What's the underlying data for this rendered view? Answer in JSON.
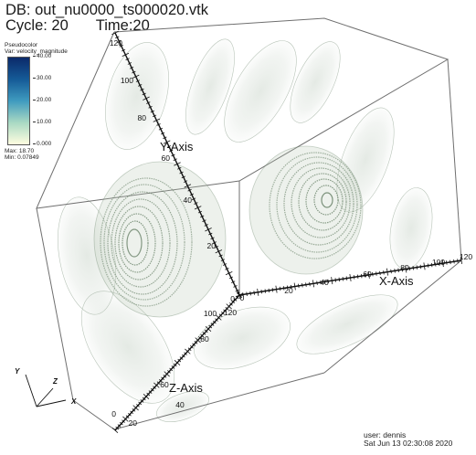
{
  "header": {
    "db_label": "DB: out_nu0000_ts000020.vtk",
    "cycle_label": "Cycle: 20",
    "time_label": "Time:20"
  },
  "legend": {
    "plot_type": "Pseudocolor",
    "variable": "Var: velocity_magnitude",
    "ticks": [
      "40.00",
      "30.00",
      "20.00",
      "10.00",
      "0.000"
    ],
    "max_label": "Max: 18.70",
    "min_label": "Min: 0.07849",
    "colors": [
      "#0b2a6a",
      "#155a97",
      "#3f9bbf",
      "#a9d9c3",
      "#fffde0"
    ]
  },
  "axes": {
    "x_title": "X-Axis",
    "y_title": "Y-Axis",
    "z_title": "Z-Axis",
    "x_ticks": [
      "0",
      "20",
      "40",
      "60",
      "80",
      "100",
      "120"
    ],
    "y_ticks": [
      "0",
      "20",
      "40",
      "60",
      "80",
      "100",
      "120"
    ],
    "z_ticks": [
      "0",
      "20",
      "40",
      "60",
      "80",
      "100",
      "120"
    ]
  },
  "triad": {
    "x": "X",
    "y": "Y",
    "z": "Z"
  },
  "footer": {
    "user_label": "user: dennis",
    "date_label": "Sat Jun 13 02:30:08 2020"
  },
  "style": {
    "box_color": "#6f6f6f",
    "isosurface_color": "#5f7a5f",
    "axis_color": "#111111"
  }
}
